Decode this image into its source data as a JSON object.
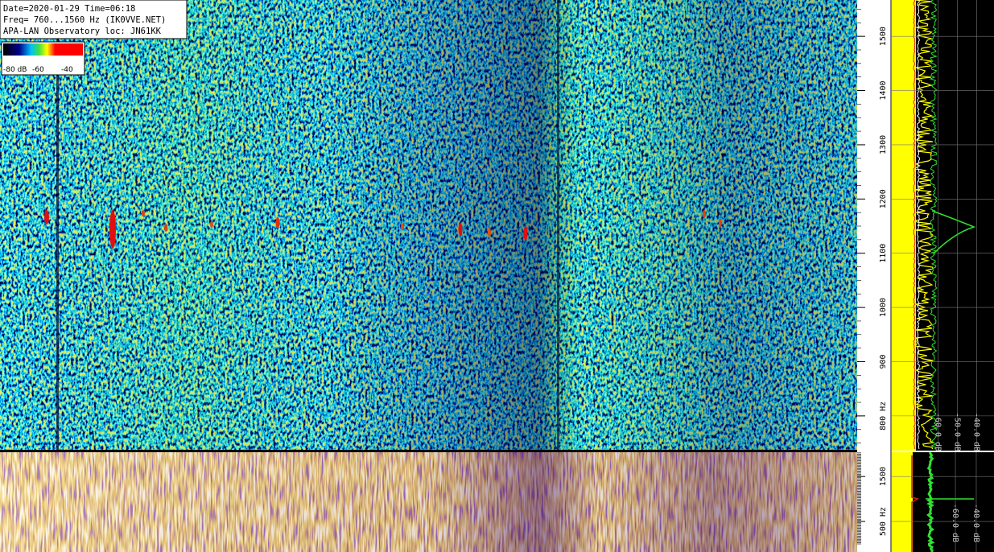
{
  "header": {
    "lines": [
      "Date=2020-01-29 Time=06:18",
      "Freq= 760...1560 Hz (IK0VVE.NET)",
      "APA-LAN Observatory loc: JN61KK"
    ]
  },
  "colorbar": {
    "labels": [
      "-80 dB",
      "-60",
      "-40"
    ]
  },
  "chart_data": [
    {
      "type": "spectrogram",
      "ylim": [
        736,
        1567
      ],
      "yticks": [
        {
          "value": 800,
          "label": "800 Hz"
        },
        900,
        1000,
        1100,
        1200,
        1300,
        1400,
        1500
      ],
      "profile": {
        "xlim": [
          -84,
          -31
        ],
        "xticks": [
          {
            "value": -60,
            "label": "-60.0 dB"
          },
          {
            "value": -50,
            "label": "-50.0 dB"
          },
          {
            "value": -40,
            "label": "-40.0 dB"
          }
        ]
      }
    },
    {
      "type": "spectrogram",
      "ylim": [
        0,
        2040
      ],
      "yticks": [
        {
          "value": 500,
          "label": "500 Hz"
        },
        1500
      ],
      "profile": {
        "xlim": [
          -121,
          -23
        ],
        "xticks": [
          {
            "value": -60,
            "label": "-60.0 dB"
          },
          {
            "value": -40,
            "label": "-40.0 dB"
          }
        ]
      }
    }
  ]
}
